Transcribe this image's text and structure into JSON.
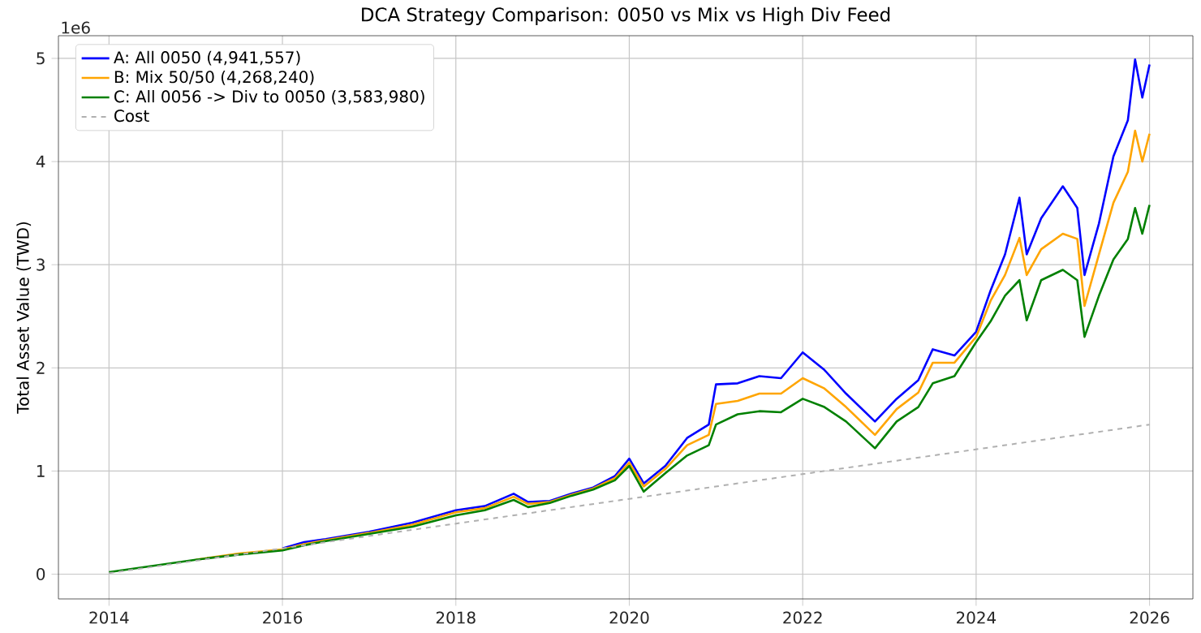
{
  "chart_data": {
    "type": "line",
    "title": "DCA Strategy Comparison: 0050 vs Mix vs High Div Feed",
    "ylabel": "Total Asset Value (TWD)",
    "annotations": [
      "1e6"
    ],
    "x": [
      "2014-01",
      "2014-07",
      "2015-01",
      "2015-07",
      "2016-01",
      "2016-04",
      "2016-07",
      "2017-01",
      "2017-07",
      "2018-01",
      "2018-05",
      "2018-09",
      "2018-11",
      "2019-02",
      "2019-05",
      "2019-08",
      "2019-11",
      "2020-01",
      "2020-03",
      "2020-06",
      "2020-09",
      "2020-12",
      "2021-01",
      "2021-04",
      "2021-07",
      "2021-10",
      "2022-01",
      "2022-04",
      "2022-07",
      "2022-11",
      "2023-02",
      "2023-05",
      "2023-07",
      "2023-10",
      "2024-01",
      "2024-03",
      "2024-05",
      "2024-07",
      "2024-08",
      "2024-10",
      "2025-01",
      "2025-03",
      "2025-04",
      "2025-06",
      "2025-08",
      "2025-10",
      "2025-11",
      "2025-12",
      "2026-01"
    ],
    "series": [
      {
        "name": "A: All 0050 (4,941,557)",
        "color": "#0000ff",
        "values": [
          null,
          null,
          null,
          null,
          0.25,
          0.31,
          0.34,
          0.41,
          0.5,
          0.62,
          0.66,
          0.78,
          0.7,
          0.71,
          0.78,
          0.84,
          0.95,
          1.12,
          0.88,
          1.05,
          1.32,
          1.45,
          1.84,
          1.85,
          1.92,
          1.9,
          2.15,
          1.98,
          1.75,
          1.48,
          1.7,
          1.88,
          2.18,
          2.12,
          2.35,
          2.75,
          3.1,
          3.65,
          3.1,
          3.45,
          3.76,
          3.55,
          2.9,
          3.4,
          4.05,
          4.4,
          4.99,
          4.62,
          4.94
        ]
      },
      {
        "name": "B: Mix 50/50 (4,268,240)",
        "color": "#ffa500",
        "values": [
          null,
          null,
          0.14,
          0.2,
          0.24,
          0.29,
          0.33,
          0.4,
          0.48,
          0.6,
          0.64,
          0.75,
          0.68,
          0.7,
          0.77,
          0.83,
          0.93,
          1.08,
          0.85,
          1.02,
          1.25,
          1.35,
          1.65,
          1.68,
          1.75,
          1.75,
          1.9,
          1.8,
          1.62,
          1.35,
          1.6,
          1.76,
          2.05,
          2.05,
          2.3,
          2.65,
          2.9,
          3.26,
          2.9,
          3.15,
          3.3,
          3.25,
          2.6,
          3.1,
          3.6,
          3.9,
          4.3,
          4.0,
          4.27
        ]
      },
      {
        "name": "C: All 0056 -> Div to 0050 (3,583,980)",
        "color": "#008000",
        "values": [
          0.02,
          0.08,
          0.14,
          0.19,
          0.23,
          0.28,
          0.32,
          0.39,
          0.46,
          0.57,
          0.62,
          0.72,
          0.65,
          0.69,
          0.76,
          0.82,
          0.91,
          1.05,
          0.8,
          0.98,
          1.15,
          1.25,
          1.45,
          1.55,
          1.58,
          1.57,
          1.7,
          1.62,
          1.48,
          1.22,
          1.48,
          1.62,
          1.85,
          1.92,
          2.25,
          2.45,
          2.7,
          2.85,
          2.46,
          2.85,
          2.95,
          2.85,
          2.3,
          2.7,
          3.05,
          3.25,
          3.55,
          3.3,
          3.58
        ]
      },
      {
        "name": "Cost",
        "color": "#b0b0b0",
        "line_style": "dashed",
        "x": [
          "2014-01",
          "2026-01"
        ],
        "values": [
          0.01,
          1.45
        ]
      }
    ],
    "xlim": [
      "2013-06",
      "2026-07"
    ],
    "ylim": [
      -0.24,
      5.22
    ],
    "xticks": [
      "2014",
      "2016",
      "2018",
      "2020",
      "2022",
      "2024",
      "2026"
    ],
    "yticks": [
      0,
      1,
      2,
      3,
      4,
      5
    ],
    "grid": true,
    "legend": "top left"
  }
}
